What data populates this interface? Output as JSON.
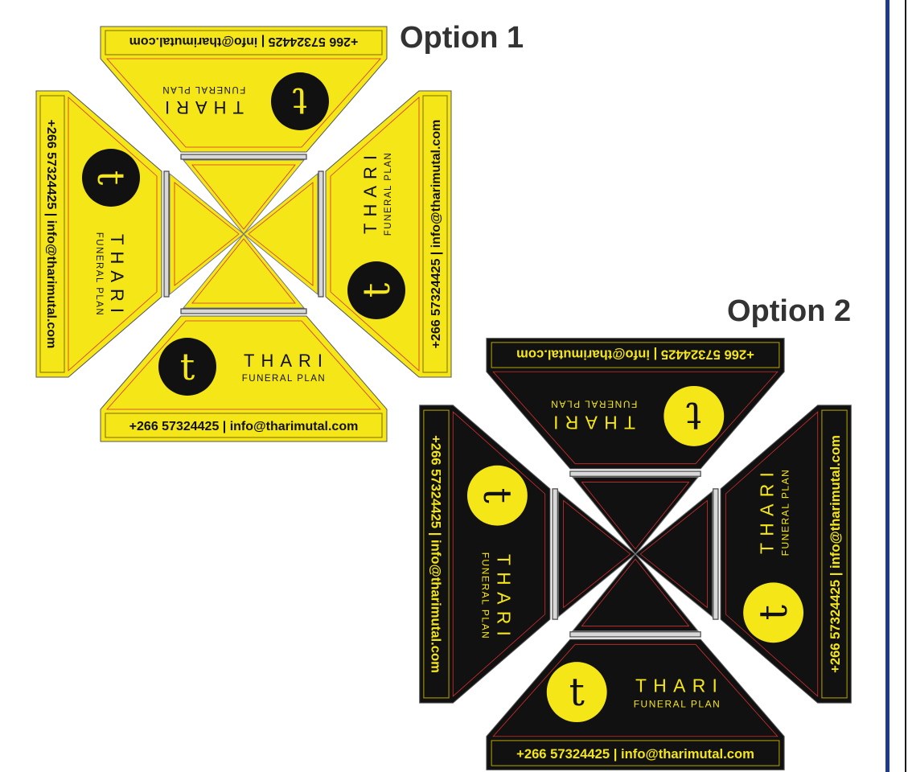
{
  "options": [
    {
      "title": "Option 1",
      "panel_color": "#f5e617",
      "ink_color": "#111111",
      "logo_bg": "#111111",
      "logo_fg": "#f5e617",
      "trim_color": "#d32f2f"
    },
    {
      "title": "Option 2",
      "panel_color": "#111111",
      "ink_color": "#f5e617",
      "logo_bg": "#f5e617",
      "logo_fg": "#111111",
      "trim_color": "#d32f2f"
    }
  ],
  "brand": {
    "logo_letter": "t",
    "name": "THARI",
    "tagline": "FUNERAL PLAN",
    "contact": "+266 57324425 | info@tharimutal.com"
  },
  "icons": {
    "logo": "thari-t-logo-icon"
  },
  "accent_rule_color": "#1f3a8a"
}
